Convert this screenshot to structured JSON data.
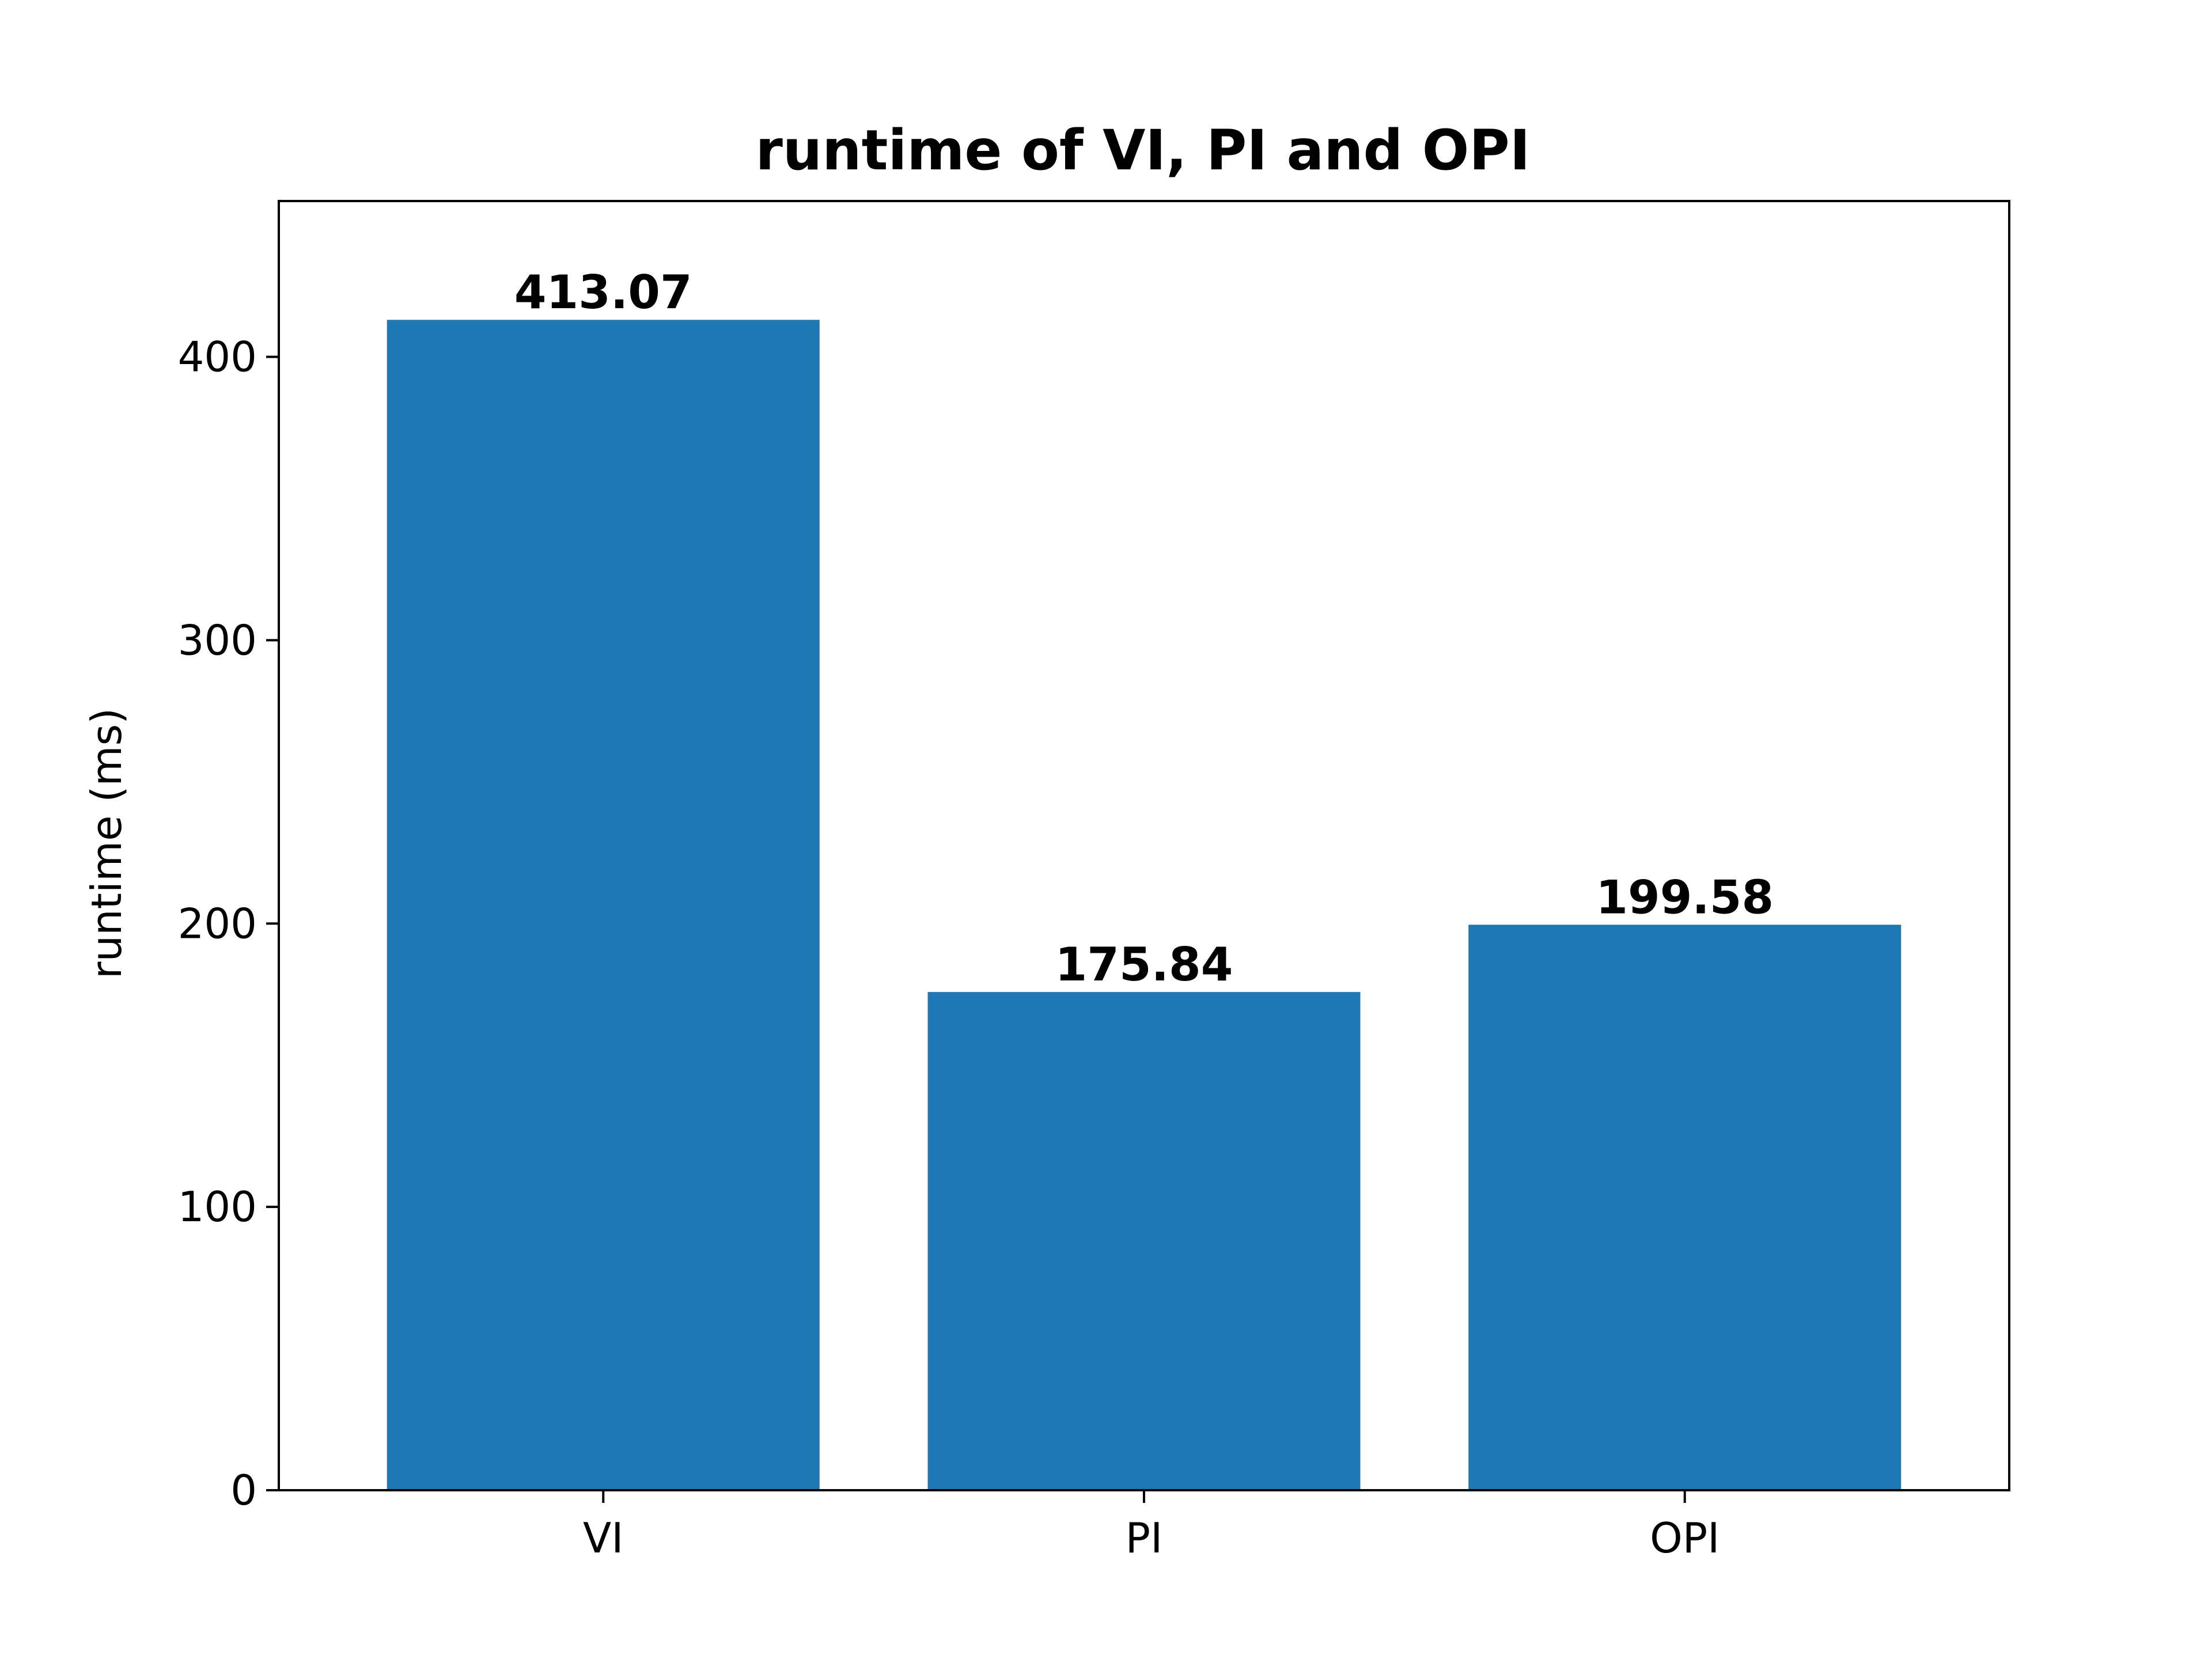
{
  "chart_data": {
    "type": "bar",
    "title": "runtime of VI, PI and OPI",
    "xlabel": "",
    "ylabel": "runtime (ms)",
    "categories": [
      "VI",
      "PI",
      "OPI"
    ],
    "values": [
      413.07,
      175.84,
      199.58
    ],
    "value_labels": [
      "413.07",
      "175.84",
      "199.58"
    ],
    "ylim": [
      0,
      455
    ],
    "yticks": [
      0,
      100,
      200,
      300,
      400
    ],
    "ytick_labels": [
      "0",
      "100",
      "200",
      "300",
      "400"
    ],
    "bar_color": "#1f77b4",
    "grid": false,
    "legend": "none"
  }
}
